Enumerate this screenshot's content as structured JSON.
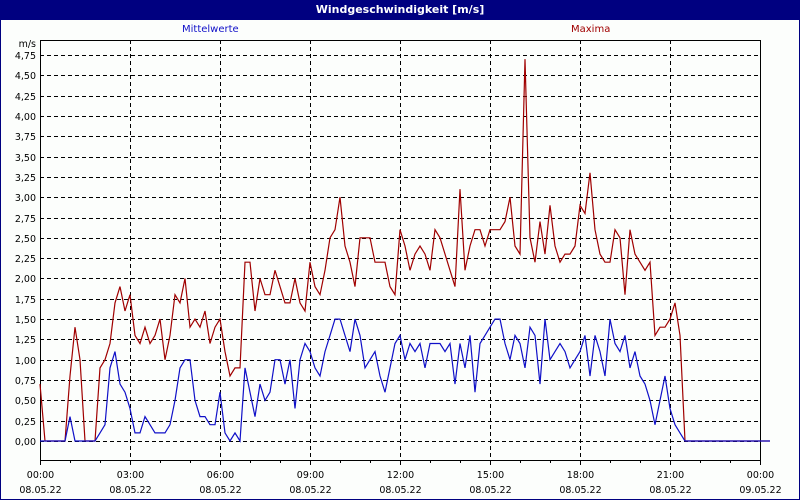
{
  "title": "Windgeschwindigkeit [m/s]",
  "legend": {
    "mean_label": "Mittelwerte",
    "max_label": "Maxima"
  },
  "colors": {
    "titlebar": "#000080",
    "mean": "#1010c8",
    "max": "#a00000",
    "grid": "#000000",
    "background": "#fcfefc"
  },
  "chart_data": {
    "type": "line",
    "title": "Windgeschwindigkeit [m/s]",
    "xlabel": "",
    "ylabel": "m/s",
    "ylim": [
      0,
      4.75
    ],
    "xlim": [
      "08.05.22 00:00",
      "09.05.22 00:00"
    ],
    "grid": true,
    "legend_position": "top",
    "y_ticks": [
      "0,00",
      "0,25",
      "0,50",
      "0,75",
      "1,00",
      "1,25",
      "1,50",
      "1,75",
      "2,00",
      "2,25",
      "2,50",
      "2,75",
      "3,00",
      "3,25",
      "3,50",
      "3,75",
      "4,00",
      "4,25",
      "4,50",
      "4,75"
    ],
    "x_ticks": [
      {
        "time": "00:00",
        "date": "08.05.22"
      },
      {
        "time": "03:00",
        "date": "08.05.22"
      },
      {
        "time": "06:00",
        "date": "08.05.22"
      },
      {
        "time": "09:00",
        "date": "08.05.22"
      },
      {
        "time": "12:00",
        "date": "08.05.22"
      },
      {
        "time": "15:00",
        "date": "08.05.22"
      },
      {
        "time": "18:00",
        "date": "08.05.22"
      },
      {
        "time": "21:00",
        "date": "08.05.22"
      },
      {
        "time": "00:00",
        "date": "09.05.22"
      }
    ],
    "sample_interval_minutes": 10,
    "series": [
      {
        "name": "Mittelwerte",
        "values": [
          0,
          0,
          0,
          0,
          0,
          0,
          0.3,
          0,
          0,
          0,
          0,
          0,
          0.1,
          0.2,
          0.9,
          1.1,
          0.7,
          0.6,
          0.4,
          0.1,
          0.1,
          0.3,
          0.2,
          0.1,
          0.1,
          0.1,
          0.2,
          0.5,
          0.9,
          1,
          1,
          0.5,
          0.3,
          0.3,
          0.2,
          0.2,
          0.6,
          0.1,
          0,
          0.1,
          0,
          0.9,
          0.6,
          0.3,
          0.7,
          0.5,
          0.6,
          1,
          1,
          0.7,
          1,
          0.4,
          1,
          1.2,
          1.1,
          0.9,
          0.8,
          1.1,
          1.3,
          1.5,
          1.5,
          1.3,
          1.1,
          1.5,
          1.3,
          0.9,
          1,
          1.1,
          0.8,
          0.6,
          0.9,
          1.2,
          1.3,
          1,
          1.2,
          1.1,
          1.2,
          0.9,
          1.2,
          1.2,
          1.2,
          1.1,
          1.2,
          0.7,
          1.2,
          0.9,
          1.3,
          0.6,
          1.2,
          1.3,
          1.4,
          1.5,
          1.5,
          1.2,
          1,
          1.3,
          1.2,
          0.9,
          1.4,
          1.3,
          0.7,
          1.5,
          1,
          1.1,
          1.2,
          1.1,
          0.9,
          1,
          1.1,
          1.3,
          0.8,
          1.3,
          1.1,
          0.8,
          1.5,
          1.2,
          1.1,
          1.3,
          0.9,
          1.1,
          0.8,
          0.7,
          0.5,
          0.2,
          0.5,
          0.8,
          0.4,
          0.2,
          0.1,
          0,
          0,
          0,
          0,
          0,
          0,
          0,
          0,
          0,
          0,
          0,
          0,
          0,
          0,
          0,
          0,
          0,
          0
        ],
        "color": "#1010c8"
      },
      {
        "name": "Maxima",
        "values": [
          0.7,
          0,
          0,
          0,
          0,
          0,
          0.8,
          1.4,
          1,
          0,
          0,
          0,
          0.9,
          1,
          1.2,
          1.7,
          1.9,
          1.6,
          1.8,
          1.3,
          1.2,
          1.4,
          1.2,
          1.3,
          1.5,
          1,
          1.3,
          1.8,
          1.7,
          2,
          1.4,
          1.5,
          1.4,
          1.6,
          1.2,
          1.4,
          1.5,
          1.1,
          0.8,
          0.9,
          0.9,
          2.2,
          2.2,
          1.6,
          2,
          1.8,
          1.8,
          2.1,
          1.9,
          1.7,
          1.7,
          2,
          1.7,
          1.6,
          2.2,
          1.9,
          1.8,
          2.1,
          2.5,
          2.6,
          3,
          2.4,
          2.2,
          1.9,
          2.5,
          2.5,
          2.5,
          2.2,
          2.2,
          2.2,
          1.9,
          1.8,
          2.6,
          2.4,
          2.1,
          2.3,
          2.4,
          2.3,
          2.1,
          2.6,
          2.5,
          2.3,
          2.1,
          1.9,
          3.1,
          2.1,
          2.4,
          2.6,
          2.6,
          2.4,
          2.6,
          2.6,
          2.6,
          2.7,
          3,
          2.4,
          2.3,
          4.7,
          2.5,
          2.2,
          2.7,
          2.3,
          2.9,
          2.4,
          2.2,
          2.3,
          2.3,
          2.4,
          2.9,
          2.8,
          3.3,
          2.6,
          2.3,
          2.2,
          2.2,
          2.6,
          2.5,
          1.8,
          2.6,
          2.3,
          2.2,
          2.1,
          2.2,
          1.3,
          1.4,
          1.4,
          1.5,
          1.7,
          1.3,
          0,
          0,
          0,
          0,
          0,
          0,
          0,
          0,
          0,
          0,
          0,
          0,
          0,
          0,
          0,
          0,
          0,
          0
        ],
        "color": "#a00000"
      }
    ]
  }
}
